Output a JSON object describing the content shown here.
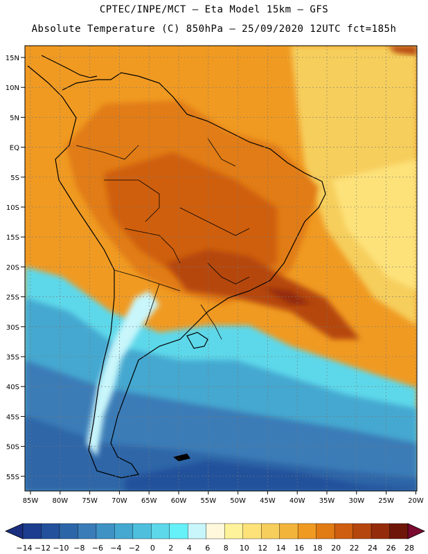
{
  "header": {
    "line1": "CPTEC/INPE/MCT –  Eta Model 15km – GFS",
    "line2": "Absolute Temperature (C) 850hPa – 25/09/2020 12UTC fct=185h"
  },
  "map": {
    "lat_labels": [
      "15N",
      "10N",
      "5N",
      "EQ",
      "5S",
      "10S",
      "15S",
      "20S",
      "25S",
      "30S",
      "35S",
      "40S",
      "45S",
      "50S",
      "55S"
    ],
    "lon_labels": [
      "85W",
      "80W",
      "75W",
      "70W",
      "65W",
      "60W",
      "55W",
      "50W",
      "45W",
      "40W",
      "35W",
      "30W",
      "25W",
      "20W"
    ]
  },
  "colorbar": {
    "ticks": [
      "-14",
      "-12",
      "-10",
      "-8",
      "-6",
      "-4",
      "-2",
      "0",
      "2",
      "4",
      "6",
      "8",
      "10",
      "12",
      "14",
      "16",
      "18",
      "20",
      "22",
      "24",
      "26",
      "28"
    ],
    "colors": [
      "#1d3d8f",
      "#23519b",
      "#2d66a8",
      "#3a7cb7",
      "#3f92c4",
      "#44a8d0",
      "#4ec0de",
      "#5dd8ea",
      "#66f0f8",
      "#c8f6fb",
      "#fff8dc",
      "#fef39a",
      "#fde27a",
      "#f6ce5c",
      "#f2b43a",
      "#f09a22",
      "#e17b14",
      "#cf5e10",
      "#b5460e",
      "#942c0b",
      "#6e1708"
    ]
  },
  "chart_data": {
    "type": "heatmap",
    "title": "Absolute Temperature (C) 850hPa – 25/09/2020 12UTC fct=185h",
    "variable": "Absolute Temperature",
    "units": "C",
    "level": "850hPa",
    "run": "25/09/2020 12UTC",
    "forecast": "fct=185h",
    "lon_range": [
      -86,
      -20
    ],
    "lat_range": [
      -58,
      17
    ],
    "colorbar_range": [
      -14,
      28
    ]
  }
}
